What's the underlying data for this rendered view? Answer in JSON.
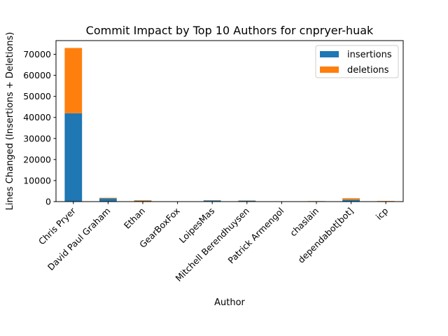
{
  "chart_data": {
    "type": "bar",
    "stacked": true,
    "title": "Commit Impact by Top 10 Authors for cnpryer-huak",
    "xlabel": "Author",
    "ylabel": "Lines Changed (Insertions + Deletions)",
    "ylim": [
      0,
      76500
    ],
    "yticks": [
      0,
      10000,
      20000,
      30000,
      40000,
      50000,
      60000,
      70000
    ],
    "grid": false,
    "legend_position": "top-right",
    "categories": [
      "Chris Pryer",
      "David Paul Graham",
      "Ethan",
      "GearBoxFox",
      "LoipesMas",
      "Mitchell Berendhuysen",
      "Patrick Armengol",
      "chaslain",
      "dependabot[bot]",
      "icp"
    ],
    "series": [
      {
        "name": "insertions",
        "color": "#1f77b4",
        "values": [
          42000,
          1500,
          350,
          50,
          550,
          450,
          50,
          200,
          900,
          150
        ]
      },
      {
        "name": "deletions",
        "color": "#ff7f0e",
        "values": [
          31000,
          300,
          300,
          30,
          100,
          100,
          30,
          50,
          700,
          150
        ]
      }
    ]
  }
}
